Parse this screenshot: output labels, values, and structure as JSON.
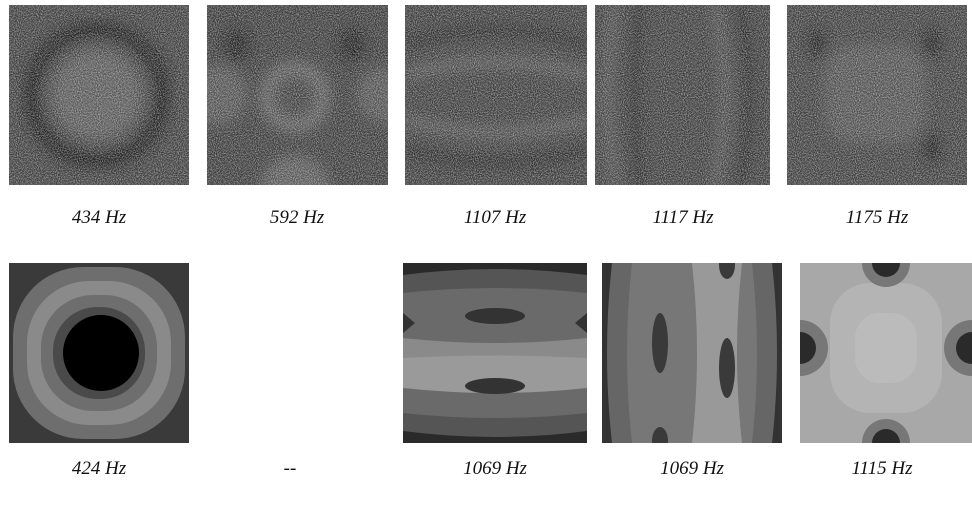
{
  "top_row": {
    "captions": [
      "434 Hz",
      "592 Hz",
      "1107 Hz",
      "1117 Hz",
      "1175 Hz"
    ]
  },
  "bottom_row": {
    "captions": [
      "424 Hz",
      "--",
      "1069 Hz",
      "1069 Hz",
      "1115 Hz"
    ]
  }
}
